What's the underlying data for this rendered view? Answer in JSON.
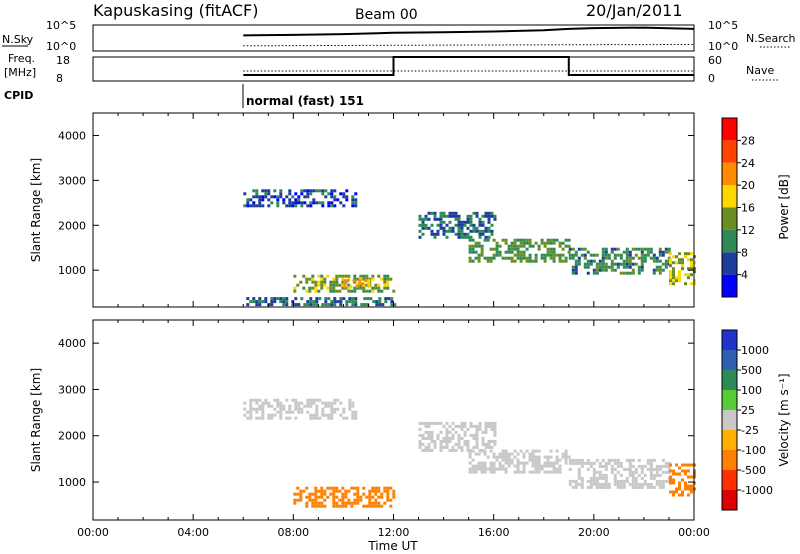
{
  "header": {
    "station": "Kapuskasing (fitACF)",
    "beam": "Beam 00",
    "date": "20/Jan/2011"
  },
  "sky_panel": {
    "left_label": "N.Sky",
    "left_ticks": [
      "10^5",
      "10^0"
    ],
    "right_ticks": [
      "10^5",
      "10^0"
    ],
    "right_label": "N.Search"
  },
  "freq_panel": {
    "left_label_line1": "Freq.",
    "left_label_line2": "[MHz]",
    "left_ticks": [
      "18",
      "8"
    ],
    "right_ticks": [
      "60",
      "0"
    ],
    "right_label": "Nave"
  },
  "cpid": {
    "label": "CPID",
    "mode": "normal (fast) 151"
  },
  "time_axis": {
    "ticks": [
      "00:00",
      "04:00",
      "08:00",
      "12:00",
      "16:00",
      "20:00",
      "00:00"
    ],
    "label": "Time UT"
  },
  "range_axis": {
    "label": "Slant Range [km]",
    "ticks": [
      "1000",
      "2000",
      "3000",
      "4000"
    ]
  },
  "power_colorbar": {
    "label": "Power [dB]",
    "ticks": [
      "4",
      "8",
      "12",
      "16",
      "20",
      "24",
      "28"
    ],
    "colors": [
      "#0000ff",
      "#1e3c9c",
      "#2e8b57",
      "#6b8e23",
      "#ffd700",
      "#ff8c00",
      "#ff4500",
      "#ff0000"
    ]
  },
  "velocity_colorbar": {
    "label": "Velocity [m s⁻¹]",
    "ticks": [
      "1000",
      "500",
      "100",
      "25",
      "-25",
      "-100",
      "-500",
      "-1000"
    ],
    "colors": [
      "#2233cc",
      "#2f5fb0",
      "#2e8b57",
      "#55cc33",
      "#c8c8c8",
      "#ffb000",
      "#ff8000",
      "#ff3000",
      "#dd0000"
    ]
  },
  "chart_data": [
    {
      "type": "line",
      "x_unit": "hours UT",
      "xlim": [
        0,
        24
      ],
      "series": [
        {
          "name": "N.Sky",
          "x": [
            6,
            8,
            10,
            12,
            14,
            16,
            18,
            19,
            20,
            22,
            24
          ],
          "y": [
            0.6,
            0.62,
            0.65,
            0.7,
            0.72,
            0.75,
            0.8,
            0.85,
            0.88,
            0.9,
            0.85
          ]
        },
        {
          "name": "N.Search",
          "x": [
            6,
            12,
            18,
            24
          ],
          "y": [
            0.2,
            0.22,
            0.24,
            0.25
          ]
        }
      ]
    },
    {
      "type": "line",
      "x_unit": "hours UT",
      "xlim": [
        0,
        24
      ],
      "series": [
        {
          "name": "Freq.",
          "x": [
            6,
            12,
            12,
            19,
            19,
            24
          ],
          "y": [
            10.5,
            10.5,
            18,
            18,
            10.5,
            10.5
          ]
        },
        {
          "name": "Nave",
          "x": [
            6,
            24
          ],
          "y": [
            25,
            25
          ]
        }
      ]
    },
    {
      "type": "heatmap",
      "x_unit": "hours UT",
      "y_unit": "km",
      "xlim": [
        0,
        24
      ],
      "ylim": [
        180,
        4500
      ],
      "title": "Power [dB]",
      "zticks": [
        4,
        8,
        12,
        16,
        20,
        24,
        28
      ],
      "regions": [
        {
          "t": [
            6,
            10.5
          ],
          "r": [
            2400,
            2800
          ],
          "value": 6
        },
        {
          "t": [
            6,
            12
          ],
          "r": [
            200,
            400
          ],
          "value": 8
        },
        {
          "t": [
            8,
            12
          ],
          "r": [
            500,
            900
          ],
          "value": 14
        },
        {
          "t": [
            10,
            11
          ],
          "r": [
            650,
            800
          ],
          "value": 20
        },
        {
          "t": [
            13,
            16
          ],
          "r": [
            1700,
            2300
          ],
          "value": 8
        },
        {
          "t": [
            15,
            19
          ],
          "r": [
            1200,
            1700
          ],
          "value": 12
        },
        {
          "t": [
            19,
            23
          ],
          "r": [
            900,
            1500
          ],
          "value": 10
        },
        {
          "t": [
            23,
            24
          ],
          "r": [
            700,
            1400
          ],
          "value": 16
        }
      ]
    },
    {
      "type": "heatmap",
      "x_unit": "hours UT",
      "y_unit": "km",
      "xlim": [
        0,
        24
      ],
      "ylim": [
        180,
        4500
      ],
      "title": "Velocity [m s⁻¹]",
      "zticks": [
        1000,
        500,
        100,
        25,
        -25,
        -100,
        -500,
        -1000
      ],
      "regions": [
        {
          "t": [
            6,
            10.5
          ],
          "r": [
            2400,
            2800
          ],
          "value": 0
        },
        {
          "t": [
            8,
            12
          ],
          "r": [
            500,
            900
          ],
          "value": -150
        },
        {
          "t": [
            13,
            16
          ],
          "r": [
            1700,
            2300
          ],
          "value": 0
        },
        {
          "t": [
            15,
            19
          ],
          "r": [
            1200,
            1700
          ],
          "value": 0
        },
        {
          "t": [
            19,
            23
          ],
          "r": [
            900,
            1500
          ],
          "value": 0
        },
        {
          "t": [
            23,
            24
          ],
          "r": [
            700,
            1400
          ],
          "value": -300
        }
      ]
    }
  ]
}
